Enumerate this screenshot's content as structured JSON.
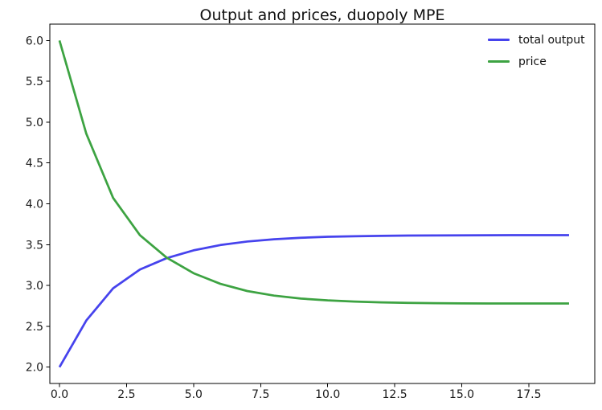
{
  "chart_data": {
    "type": "line",
    "title": "Output and prices, duopoly MPE",
    "xlabel": "",
    "ylabel": "",
    "x": [
      0,
      1,
      2,
      3,
      4,
      5,
      6,
      7,
      8,
      9,
      10,
      11,
      12,
      13,
      14,
      15,
      16,
      17,
      18,
      19
    ],
    "series": [
      {
        "name": "total output",
        "color": "#4643ed",
        "values": [
          2.0,
          2.571,
          2.965,
          3.195,
          3.335,
          3.43,
          3.495,
          3.538,
          3.566,
          3.584,
          3.596,
          3.603,
          3.608,
          3.611,
          3.613,
          3.614,
          3.615,
          3.616,
          3.616,
          3.616
        ]
      },
      {
        "name": "price",
        "color": "#3da342",
        "values": [
          6.0,
          4.858,
          4.072,
          3.615,
          3.34,
          3.15,
          3.02,
          2.932,
          2.876,
          2.84,
          2.817,
          2.803,
          2.793,
          2.787,
          2.783,
          2.781,
          2.78,
          2.779,
          2.779,
          2.779
        ]
      }
    ],
    "xtick_labels": [
      "0.0",
      "2.5",
      "5.0",
      "7.5",
      "10.0",
      "12.5",
      "15.0",
      "17.5"
    ],
    "ytick_labels": [
      "2.0",
      "2.5",
      "3.0",
      "3.5",
      "4.0",
      "4.5",
      "5.0",
      "5.5",
      "6.0"
    ],
    "xlim": [
      -0.36,
      19.96
    ],
    "ylim": [
      1.8,
      6.2
    ],
    "grid": false,
    "legend": {
      "position": "upper-right",
      "frame": false
    }
  },
  "colors": {
    "background": "#ffffff",
    "spine": "#000000",
    "tick_text": "#1a1a1a",
    "title_text": "#111111"
  }
}
